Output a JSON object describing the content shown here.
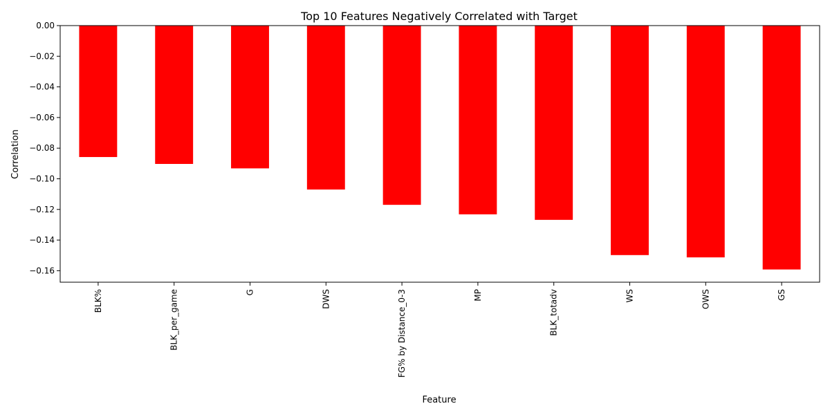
{
  "chart_data": {
    "type": "bar",
    "title": "Top 10 Features Negatively Correlated with Target",
    "xlabel": "Feature",
    "ylabel": "Correlation",
    "categories": [
      "BLK%",
      "BLK_per_game",
      "G",
      "DWS",
      "FG% by Distance_0-3",
      "MP",
      "BLK_totadv",
      "WS",
      "OWS",
      "GS"
    ],
    "values": [
      -0.0858,
      -0.0903,
      -0.0932,
      -0.107,
      -0.117,
      -0.1232,
      -0.1268,
      -0.1498,
      -0.1513,
      -0.1592
    ],
    "ylim": [
      -0.1675,
      0.0
    ],
    "yticks": [
      "0.00",
      "−0.02",
      "−0.04",
      "−0.06",
      "−0.08",
      "−0.10",
      "−0.12",
      "−0.14",
      "−0.16"
    ],
    "grid": false,
    "bar_color": "#ff0000"
  }
}
